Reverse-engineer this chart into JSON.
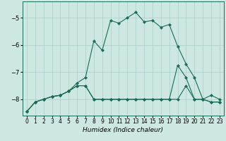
{
  "xlabel": "Humidex (Indice chaleur)",
  "bg_color": "#cce8e0",
  "grid_color": "#aacfc8",
  "line_color": "#1a6b5a",
  "xlim": [
    -0.5,
    23.5
  ],
  "ylim": [
    -8.6,
    -4.4
  ],
  "yticks": [
    -8,
    -7,
    -6,
    -5
  ],
  "xticks": [
    0,
    1,
    2,
    3,
    4,
    5,
    6,
    7,
    8,
    9,
    10,
    11,
    12,
    13,
    14,
    15,
    16,
    17,
    18,
    19,
    20,
    21,
    22,
    23
  ],
  "curve1": [
    -8.45,
    -8.1,
    -8.0,
    -7.9,
    -7.85,
    -7.7,
    -7.4,
    -7.2,
    -5.85,
    -6.2,
    -5.1,
    -5.2,
    -5.0,
    -4.8,
    -5.15,
    -5.1,
    -5.35,
    -5.25,
    -6.05,
    -6.7,
    -7.2,
    -8.0,
    -7.85,
    -8.0
  ],
  "curve2": [
    -8.45,
    -8.1,
    -8.0,
    -7.9,
    -7.85,
    -7.7,
    -7.5,
    -7.5,
    -8.0,
    -8.0,
    -8.0,
    -8.0,
    -8.0,
    -8.0,
    -8.0,
    -8.0,
    -8.0,
    -8.0,
    -6.75,
    -7.2,
    -8.0,
    -8.0,
    -8.1,
    -8.1
  ],
  "curve3": [
    -8.45,
    -8.1,
    -8.0,
    -7.9,
    -7.85,
    -7.7,
    -7.5,
    -7.5,
    -8.0,
    -8.0,
    -8.0,
    -8.0,
    -8.0,
    -8.0,
    -8.0,
    -8.0,
    -8.0,
    -8.0,
    -8.0,
    -7.5,
    -8.0,
    -8.0,
    -8.1,
    -8.1
  ]
}
